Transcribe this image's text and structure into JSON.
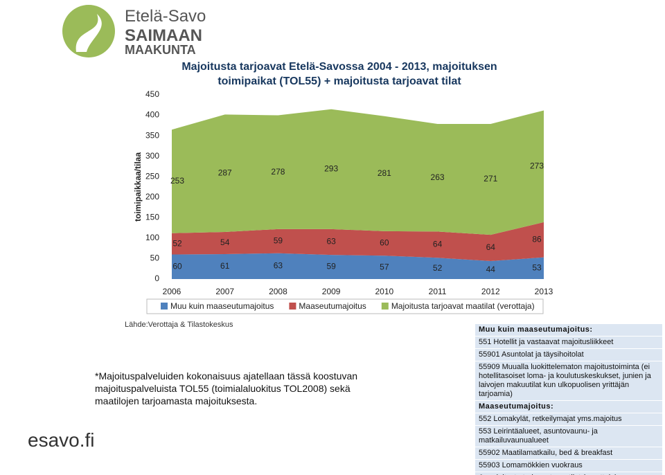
{
  "logo": {
    "line1": "Etelä-Savo",
    "line2": "SAIMAAN",
    "line3": "MAAKUNTA"
  },
  "chart_data": {
    "type": "stacked-area",
    "title": "Majoitusta tarjoavat Etelä-Savossa 2004 - 2013, majoituksen toimipaikat (TOL55) + majoitusta tarjoavat tilat",
    "y_label": "toimipaikkaa/tilaa",
    "categories": [
      "2006",
      "2007",
      "2008",
      "2009",
      "2010",
      "2011",
      "2012",
      "2013"
    ],
    "series": [
      {
        "name": "Muu kuin maaseutumajoitus",
        "color": "#4f81bd",
        "values": [
          60,
          61,
          63,
          59,
          57,
          52,
          44,
          53
        ]
      },
      {
        "name": "Maaseutumajoitus",
        "color": "#c0504d",
        "values": [
          52,
          54,
          59,
          63,
          60,
          64,
          64,
          86
        ]
      },
      {
        "name": "Majoitusta tarjoavat maatilat (verottaja)",
        "color": "#9bbb59",
        "values": [
          253,
          287,
          278,
          293,
          281,
          263,
          271,
          273
        ]
      }
    ],
    "ylim": [
      0,
      450
    ],
    "yticks": [
      0,
      50,
      100,
      150,
      200,
      250,
      300,
      350,
      400,
      450
    ],
    "grid": false,
    "legend": "bottom"
  },
  "source": "Lähde:Verottaja & Tilastokeskus",
  "note": "*Majoituspalveluiden kokonaisuus ajatellaan tässä koostuvan majoituspalveluista TOL55 (toimialaluokitus TOL2008) sekä maatilojen tarjoamasta majoituksesta.",
  "footer": "esavo.fi",
  "info_box": [
    {
      "heading": "Muu kuin maaseutumajoitus:",
      "items": [
        "551 Hotellit ja vastaavat majoitusliikkeet",
        "55901 Asuntolat ja täysihoitolat",
        "55909 Muualla luokittelematon majoitustoiminta (ei hotellitasoiset loma- ja koulutuskeskukset, junien ja laivojen makuutilat kun ulkopuolisen yrittäjän tarjoamia)"
      ]
    },
    {
      "heading": "Maaseutumajoitus:",
      "items": [
        "552 Lomakylät, retkeilymajat yms.majoitus",
        "553 Leirintäalueet, asuntovaunu- ja matkailuvaunualueet",
        "55902 Maatilamatkailu, bed & breakfast",
        "55903 Lomamökkien vuokraus",
        "& majoitusta tarjoavat maatilat (verottaja)"
      ]
    }
  ]
}
